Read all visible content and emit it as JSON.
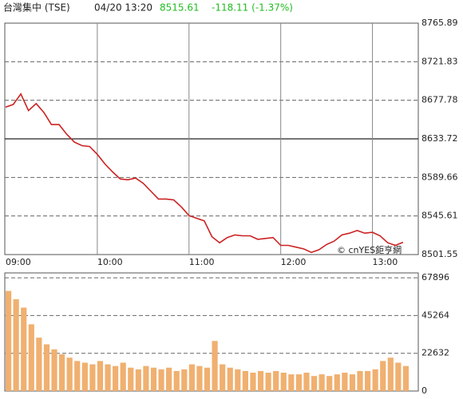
{
  "header": {
    "name": "台灣集中 (TSE)",
    "time": "04/20 13:20",
    "price": "8515.61",
    "change": "-118.11 (-1.37%)",
    "watermark": "© cnYES鉅亨網"
  },
  "chart_data": [
    {
      "type": "line",
      "color": "#cc2222",
      "x": [
        "09:00",
        "09:05",
        "09:10",
        "09:15",
        "09:20",
        "09:25",
        "09:30",
        "09:35",
        "09:40",
        "09:45",
        "09:50",
        "09:55",
        "10:00",
        "10:05",
        "10:10",
        "10:15",
        "10:20",
        "10:25",
        "10:30",
        "10:35",
        "10:40",
        "10:45",
        "10:50",
        "10:55",
        "11:00",
        "11:05",
        "11:10",
        "11:15",
        "11:20",
        "11:25",
        "11:30",
        "11:35",
        "11:40",
        "11:45",
        "11:50",
        "11:55",
        "12:00",
        "12:05",
        "12:10",
        "12:15",
        "12:20",
        "12:25",
        "12:30",
        "12:35",
        "12:40",
        "12:45",
        "12:50",
        "12:55",
        "13:00",
        "13:05",
        "13:10",
        "13:15",
        "13:20"
      ],
      "values": [
        8670,
        8673,
        8685,
        8666,
        8674,
        8664,
        8650,
        8650,
        8639,
        8630,
        8626,
        8625,
        8616,
        8605,
        8596,
        8588,
        8587,
        8589,
        8583,
        8574,
        8565,
        8565,
        8564,
        8556,
        8546,
        8543,
        8540,
        8522,
        8515,
        8521,
        8524,
        8523,
        8523,
        8519,
        8520,
        8521,
        8512,
        8512,
        8510,
        8508,
        8504,
        8507,
        8513,
        8517,
        8524,
        8526,
        8529,
        8526,
        8527,
        8523,
        8515,
        8512,
        8515.61
      ],
      "xlim": [
        "09:00",
        "13:30"
      ],
      "xticks": [
        "09:00",
        "10:00",
        "11:00",
        "12:00",
        "13:00"
      ],
      "ylim": [
        8501.55,
        8765.89
      ],
      "yticks": [
        8765.89,
        8721.83,
        8677.78,
        8633.72,
        8589.66,
        8545.61,
        8501.55
      ],
      "grid": true
    },
    {
      "type": "bar",
      "color": "#f0b070",
      "x": [
        "09:00",
        "09:05",
        "09:10",
        "09:15",
        "09:20",
        "09:25",
        "09:30",
        "09:35",
        "09:40",
        "09:45",
        "09:50",
        "09:55",
        "10:00",
        "10:05",
        "10:10",
        "10:15",
        "10:20",
        "10:25",
        "10:30",
        "10:35",
        "10:40",
        "10:45",
        "10:50",
        "10:55",
        "11:00",
        "11:05",
        "11:10",
        "11:15",
        "11:20",
        "11:25",
        "11:30",
        "11:35",
        "11:40",
        "11:45",
        "11:50",
        "11:55",
        "12:00",
        "12:05",
        "12:10",
        "12:15",
        "12:20",
        "12:25",
        "12:30",
        "12:35",
        "12:40",
        "12:45",
        "12:50",
        "12:55",
        "13:00",
        "13:05",
        "13:10",
        "13:15",
        "13:20"
      ],
      "values": [
        60000,
        55000,
        50000,
        40000,
        32000,
        28000,
        25000,
        22000,
        20000,
        18000,
        17000,
        16000,
        18000,
        16000,
        15000,
        17000,
        14000,
        13000,
        15000,
        14000,
        13000,
        14000,
        12000,
        13000,
        16000,
        15000,
        14000,
        30000,
        16000,
        14000,
        13000,
        12000,
        11000,
        12000,
        11000,
        12000,
        11000,
        10000,
        10000,
        11000,
        9000,
        10000,
        9000,
        10000,
        11000,
        10000,
        12000,
        12000,
        13000,
        18000,
        20000,
        17000,
        15000
      ],
      "xlim": [
        "09:00",
        "13:30"
      ],
      "ylim": [
        0,
        70800
      ],
      "yticks": [
        67896,
        45264,
        22632,
        0
      ],
      "grid": true
    }
  ]
}
